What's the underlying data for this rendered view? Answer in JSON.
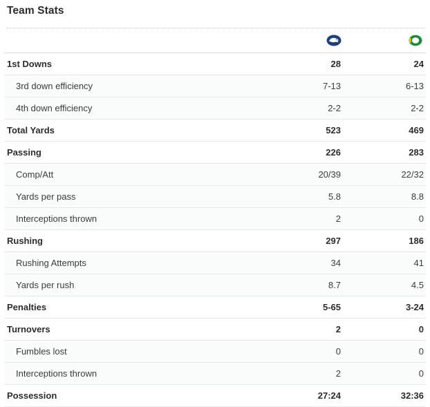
{
  "title": "Team Stats",
  "teams": [
    {
      "logo_icon": "nittany-lion-logo-icon",
      "color": "#1e3f7a"
    },
    {
      "logo_icon": "oregon-o-logo-icon",
      "color": "#1d8a3b"
    }
  ],
  "stats": [
    {
      "label": "1st Downs",
      "team1": "28",
      "team2": "24",
      "level": "main"
    },
    {
      "label": "3rd down efficiency",
      "team1": "7-13",
      "team2": "6-13",
      "level": "sub"
    },
    {
      "label": "4th down efficiency",
      "team1": "2-2",
      "team2": "2-2",
      "level": "sub"
    },
    {
      "label": "Total Yards",
      "team1": "523",
      "team2": "469",
      "level": "main"
    },
    {
      "label": "Passing",
      "team1": "226",
      "team2": "283",
      "level": "main"
    },
    {
      "label": "Comp/Att",
      "team1": "20/39",
      "team2": "22/32",
      "level": "sub"
    },
    {
      "label": "Yards per pass",
      "team1": "5.8",
      "team2": "8.8",
      "level": "sub"
    },
    {
      "label": "Interceptions thrown",
      "team1": "2",
      "team2": "0",
      "level": "sub"
    },
    {
      "label": "Rushing",
      "team1": "297",
      "team2": "186",
      "level": "main"
    },
    {
      "label": "Rushing Attempts",
      "team1": "34",
      "team2": "41",
      "level": "sub"
    },
    {
      "label": "Yards per rush",
      "team1": "8.7",
      "team2": "4.5",
      "level": "sub"
    },
    {
      "label": "Penalties",
      "team1": "5-65",
      "team2": "3-24",
      "level": "main"
    },
    {
      "label": "Turnovers",
      "team1": "2",
      "team2": "0",
      "level": "main"
    },
    {
      "label": "Fumbles lost",
      "team1": "0",
      "team2": "0",
      "level": "sub"
    },
    {
      "label": "Interceptions thrown",
      "team1": "2",
      "team2": "0",
      "level": "sub"
    },
    {
      "label": "Possession",
      "team1": "27:24",
      "team2": "32:36",
      "level": "main"
    }
  ]
}
